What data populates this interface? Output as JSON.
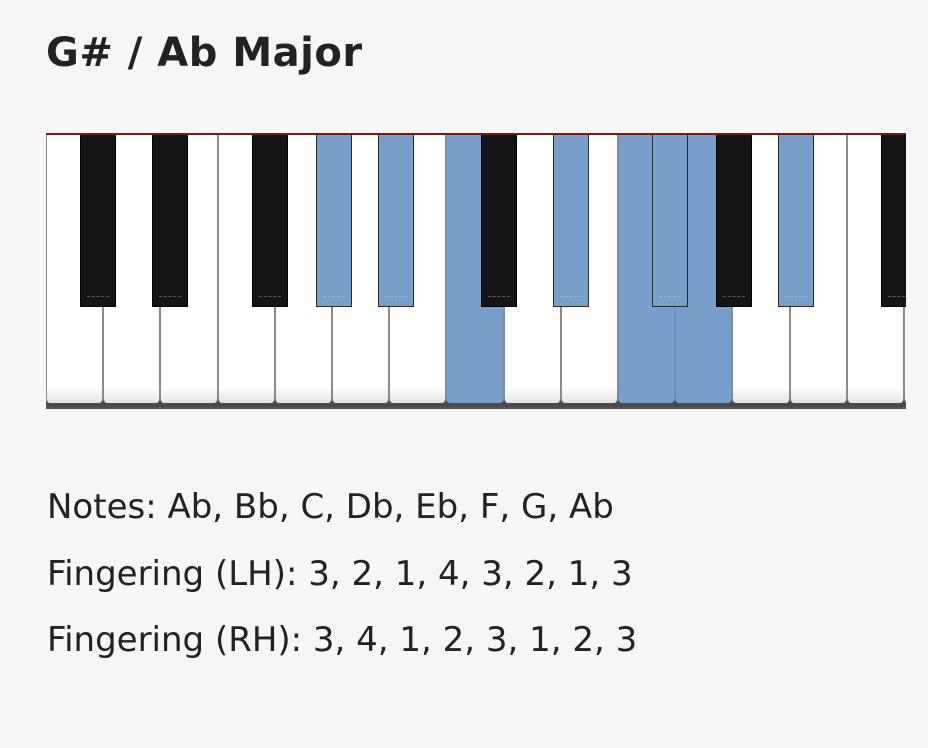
{
  "title": "G# / Ab Major",
  "keyboard": {
    "highlight_color": "#789fca",
    "white_keys_visible": 15,
    "highlighted_white_keys": [
      7,
      10,
      11
    ],
    "highlighted_black_keys": [
      3,
      4,
      6,
      7,
      9
    ]
  },
  "info": {
    "notes": "Notes: Ab, Bb, C, Db, Eb, F, G, Ab",
    "fingering_lh": "Fingering (LH): 3, 2, 1, 4, 3, 2, 1, 3",
    "fingering_rh": "Fingering (RH): 3, 4, 1, 2, 3, 1, 2, 3"
  }
}
